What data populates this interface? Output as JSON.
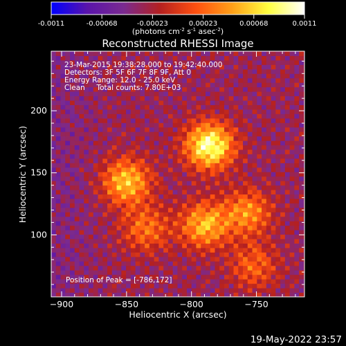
{
  "chart_data": {
    "type": "heatmap",
    "title": "Reconstructed RHESSI Image",
    "xlabel": "Heliocentric X (arcsec)",
    "ylabel": "Heliocentric Y (arcsec)",
    "xlim": [
      -908,
      -713
    ],
    "ylim": [
      50,
      248
    ],
    "xticks": [
      -900,
      -850,
      -800,
      -750
    ],
    "yticks": [
      100,
      150,
      200
    ],
    "colorbar": {
      "range": [
        -0.0011,
        0.0011
      ],
      "ticks": [
        "-0.0011",
        "-0.00068",
        "-0.00023",
        "0.00023",
        "0.00068",
        "0.0011"
      ],
      "unit_prefix": "(photons cm",
      "unit_sup1": "-2",
      "unit_mid1": " s",
      "unit_sup2": "-1",
      "unit_mid2": " asec",
      "unit_sup3": "-2",
      "unit_suffix": ")"
    },
    "annotations": [
      "23-Mar-2015 19:38:28.000 to 19:42:40.000",
      "Detectors: 3F 5F 6F 7F 8F 9F, Att 0",
      "Energy Range: 12.0 - 25.0 keV",
      "Clean     Total counts: 7.80E+03"
    ],
    "peak_label": "Position of Peak = [-786,172]",
    "peak": [
      -786,
      172
    ],
    "sources": [
      {
        "x": -786,
        "y": 172,
        "amp": 1.0
      },
      {
        "x": -850,
        "y": 143,
        "amp": 0.72
      },
      {
        "x": -790,
        "y": 108,
        "amp": 0.68
      },
      {
        "x": -757,
        "y": 118,
        "amp": 0.55
      },
      {
        "x": -835,
        "y": 105,
        "amp": 0.45
      },
      {
        "x": -752,
        "y": 75,
        "amp": 0.4
      }
    ],
    "colormap": [
      "#0000ff",
      "#5a14aa",
      "#7a2a90",
      "#b42020",
      "#ff5010",
      "#ffa018",
      "#ffff40",
      "#ffffff"
    ]
  },
  "footer": {
    "date": "19-May-2022 23:57"
  }
}
